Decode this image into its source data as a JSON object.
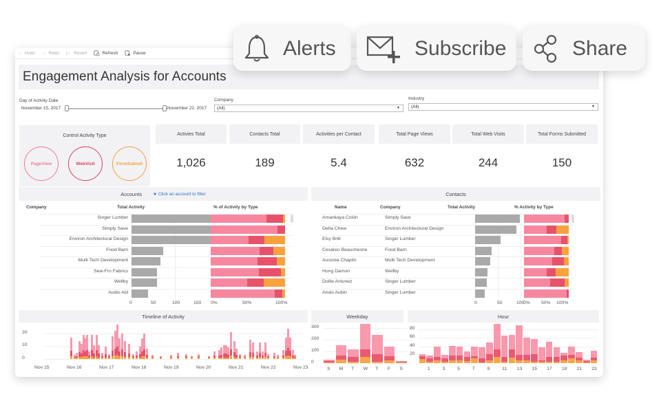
{
  "toolbar": {
    "undo": "Undo",
    "redo": "Redo",
    "revert": "Revert",
    "refresh": "Refresh",
    "pause": "Pause"
  },
  "overlay_actions": {
    "alerts": "Alerts",
    "subscribe": "Subscribe",
    "share": "Share"
  },
  "title": "Engagement Analysis for Accounts",
  "filters": {
    "date_label": "Day of Activity Date",
    "date_start": "November 15, 2017",
    "date_end": "November 22, 2017",
    "company_label": "Company",
    "company_value": "(All)",
    "industry_label": "Industry",
    "industry_value": "(All)"
  },
  "control": {
    "title": "Control Activity Type",
    "types": [
      {
        "label": "PageView",
        "color": "#f07a98"
      },
      {
        "label": "WebVisit",
        "color": "#d9405a"
      },
      {
        "label": "FormSubmit",
        "color": "#f3a040"
      }
    ]
  },
  "kpis": [
    {
      "label": "Activies Total",
      "value": "1,026"
    },
    {
      "label": "Contacts Total",
      "value": "189"
    },
    {
      "label": "Activities per Contact",
      "value": "5.4"
    },
    {
      "label": "Total Page Views",
      "value": "632"
    },
    {
      "label": "Total Web Visits",
      "value": "244"
    },
    {
      "label": "Total Forms Submitted",
      "value": "150"
    }
  ],
  "colors": {
    "pageview": "#f7879f",
    "webvisit": "#e8516a",
    "formsubmit": "#f8a13e",
    "total_bar": "#a9a9a9"
  },
  "accounts": {
    "title": "Accounts",
    "hint": "Click an account to filter",
    "col_company": "Company",
    "col_total": "Total Activity",
    "col_pct": "% of Activity by Type",
    "axis_total": [
      "0",
      "50",
      "100",
      "150"
    ],
    "axis_pct": [
      "0%",
      "50%",
      "100%"
    ],
    "rows": [
      {
        "company": "Singer Lumber",
        "total": 175,
        "pv": 75,
        "wv": 22,
        "fs": 3
      },
      {
        "company": "Simply Save",
        "total": 105,
        "pv": 90,
        "wv": 10,
        "fs": 0
      },
      {
        "company": "Environ Architectural Design",
        "total": 94,
        "pv": 51,
        "wv": 21,
        "fs": 28
      },
      {
        "company": "Food Barn",
        "total": 37,
        "pv": 66,
        "wv": 18,
        "fs": 16
      },
      {
        "company": "Multi Tech Development",
        "total": 34,
        "pv": 63,
        "wv": 26,
        "fs": 11
      },
      {
        "company": "Sew-Fro Fabrics",
        "total": 30,
        "pv": 65,
        "wv": 29,
        "fs": 6
      },
      {
        "company": "Wellby",
        "total": 30,
        "pv": 49,
        "wv": 22,
        "fs": 29
      },
      {
        "company": "Audio Aid",
        "total": 19,
        "pv": 86,
        "wv": 10,
        "fs": 4
      }
    ]
  },
  "contacts": {
    "title": "Contacts",
    "col_name": "Name",
    "col_company": "Company",
    "col_total": "Total Activity",
    "col_pct": "% Activity by Type",
    "axis_total": [
      "0",
      "50",
      "100"
    ],
    "axis_pct": [
      "0%",
      "50%",
      "100%"
    ],
    "rows": [
      {
        "name": "Amankaya Colón",
        "company": "Simply Save",
        "total": 100,
        "pv": 90,
        "wv": 10,
        "fs": 0
      },
      {
        "name": "Delta Chew",
        "company": "Environ Architectural Design",
        "total": 92,
        "pv": 50,
        "wv": 22,
        "fs": 28
      },
      {
        "name": "Elsy Britt",
        "company": "Singer Lumber",
        "total": 57,
        "pv": 83,
        "wv": 14,
        "fs": 3
      },
      {
        "name": "Cesáreo Beauchesne",
        "company": "Food Barn",
        "total": 37,
        "pv": 67,
        "wv": 18,
        "fs": 15
      },
      {
        "name": "Ausonia Chaplin",
        "company": "Multi Tech Development",
        "total": 34,
        "pv": 63,
        "wv": 26,
        "fs": 11
      },
      {
        "name": "Hung Damon",
        "company": "Wellby",
        "total": 28,
        "pv": 50,
        "wv": 20,
        "fs": 30
      },
      {
        "name": "Dollie Antunez",
        "company": "Singer Lumber",
        "total": 26,
        "pv": 58,
        "wv": 33,
        "fs": 9
      },
      {
        "name": "Anais Aubin",
        "company": "Singer Lumber",
        "total": 21,
        "pv": 96,
        "wv": 4,
        "fs": 0
      }
    ]
  },
  "timeline": {
    "title": "Timeline of Activity",
    "y_ticks": [
      "20",
      "10",
      "0"
    ],
    "x_labels": [
      "Nov 15",
      "Nov 16",
      "Nov 17",
      "Nov 18",
      "Nov 19",
      "Nov 20",
      "Nov 21",
      "Nov 22",
      "Nov 23"
    ]
  },
  "weekday": {
    "title": "Weekday",
    "y_ticks": [
      "300",
      "200",
      "100",
      "0"
    ],
    "x_labels": [
      "S",
      "M",
      "T",
      "W",
      "T",
      "F",
      "S"
    ]
  },
  "hour": {
    "title": "Hour",
    "y_ticks": [
      "80",
      "60",
      "40",
      "20"
    ],
    "x_labels": [
      "1",
      "3",
      "5",
      "7",
      "9",
      "11",
      "13",
      "15",
      "17",
      "19",
      "21",
      "23"
    ]
  },
  "chart_data": [
    {
      "type": "bar",
      "title": "Weekday",
      "categories": [
        "S",
        "M",
        "T",
        "W",
        "T",
        "F",
        "S"
      ],
      "series": [
        {
          "name": "FormSubmit",
          "values": [
            8,
            30,
            12,
            50,
            12,
            22,
            4
          ]
        },
        {
          "name": "WebVisit",
          "values": [
            10,
            32,
            40,
            70,
            65,
            35,
            6
          ]
        },
        {
          "name": "PageView",
          "values": [
            14,
            90,
            65,
            215,
            163,
            85,
            10
          ]
        }
      ],
      "ylim": [
        0,
        340
      ],
      "stacked": true
    },
    {
      "type": "bar",
      "title": "Hour",
      "categories": [
        "0",
        "1",
        "2",
        "3",
        "4",
        "5",
        "6",
        "7",
        "8",
        "9",
        "10",
        "11",
        "12",
        "13",
        "14",
        "15",
        "16",
        "17",
        "18",
        "19",
        "20",
        "21",
        "22",
        "23"
      ],
      "series": [
        {
          "name": "FormSubmit",
          "values": [
            10,
            4,
            6,
            3,
            6,
            6,
            5,
            11,
            2,
            6,
            15,
            3,
            13,
            6,
            6,
            3,
            3,
            4,
            4,
            6,
            11,
            6,
            2,
            6
          ]
        },
        {
          "name": "WebVisit",
          "values": [
            6,
            7,
            9,
            8,
            12,
            12,
            9,
            6,
            9,
            15,
            18,
            12,
            19,
            13,
            13,
            19,
            3,
            11,
            10,
            12,
            8,
            7,
            3,
            7
          ]
        },
        {
          "name": "PageView",
          "values": [
            6,
            7,
            25,
            9,
            23,
            21,
            14,
            23,
            27,
            28,
            60,
            51,
            36,
            71,
            42,
            36,
            31,
            36,
            23,
            7,
            20,
            13,
            3,
            16
          ]
        }
      ],
      "ylim": [
        0,
        95
      ],
      "stacked": true
    },
    {
      "type": "bar",
      "title": "Timeline of Activity",
      "x_range": [
        "Nov 15",
        "Nov 23"
      ],
      "y_ticks": [
        0,
        10,
        20
      ],
      "ylim": [
        0,
        27
      ],
      "note": "hourly stacked bars by activity type; peaks ~27 on Nov 16, ~24 on Nov 22"
    }
  ]
}
